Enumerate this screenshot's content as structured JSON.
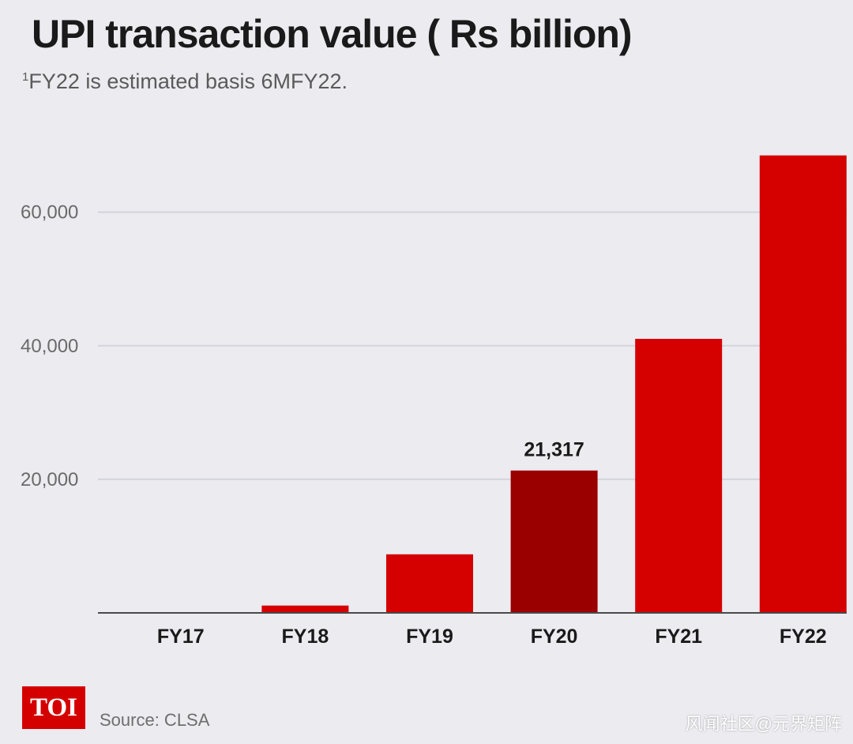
{
  "title": "UPI transaction value ( Rs billion)",
  "footnote": {
    "marker": "1",
    "text": "FY22 is estimated basis 6MFY22."
  },
  "source": "Source: CLSA",
  "logo": "TOI",
  "watermark": "风闻社区@元界矩阵",
  "colors": {
    "bar": "#d50000",
    "highlight": "#9a0000",
    "grid": "#d4d4dc",
    "axis": "#4a4a4a",
    "tick_label": "#6a6a6a",
    "category_label": "#1a1a1a"
  },
  "chart_data": {
    "type": "bar",
    "title": "UPI transaction value ( Rs billion)",
    "xlabel": "",
    "ylabel": "",
    "categories": [
      "FY17",
      "FY18",
      "FY19",
      "FY20",
      "FY21",
      "FY22"
    ],
    "values": [
      70,
      1098,
      8770,
      21317,
      41036,
      68500
    ],
    "highlight_index": 3,
    "data_labels": [
      {
        "index": 3,
        "text": "21,317"
      }
    ],
    "ylim": [
      0,
      68000
    ],
    "yticks": [
      {
        "value": 20000,
        "label": "20,000"
      },
      {
        "value": 40000,
        "label": "40,000"
      },
      {
        "value": 60000,
        "label": "60,000"
      }
    ],
    "grid": true,
    "legend": "none"
  }
}
